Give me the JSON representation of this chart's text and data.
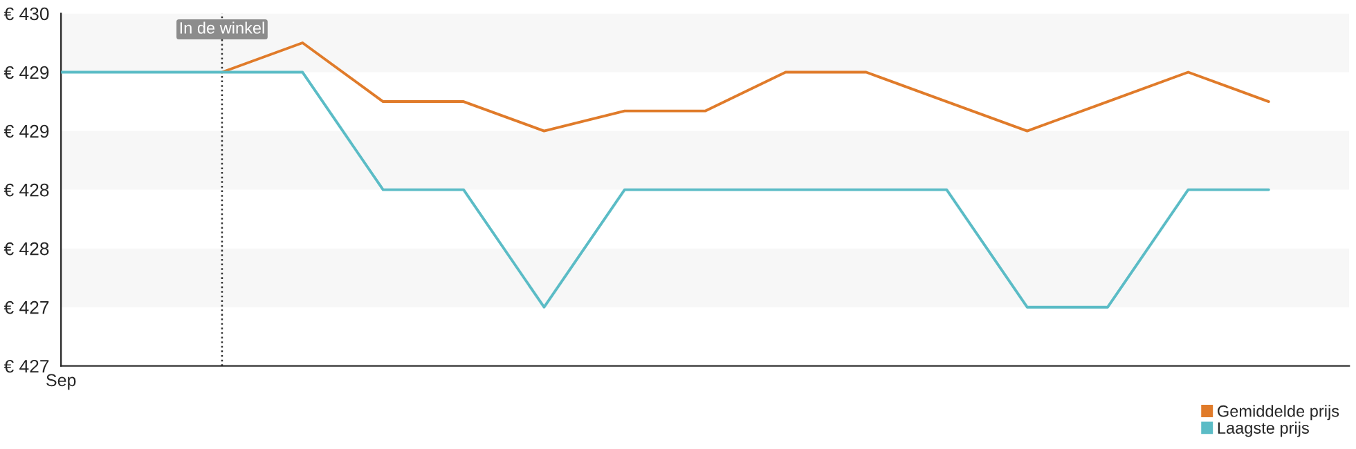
{
  "chart_data": {
    "type": "line",
    "categories": [
      "Sep",
      null,
      null,
      null,
      null,
      null,
      null,
      null,
      null,
      null,
      null,
      null,
      null,
      null,
      null,
      null
    ],
    "series": [
      {
        "name": "Gemiddelde prijs",
        "color": "#e07b2a",
        "values": [
          null,
          null,
          429.5,
          429.75,
          429.25,
          429.25,
          429,
          429.17,
          429.17,
          429.5,
          429.5,
          429.25,
          429,
          429.25,
          429.5,
          429.25
        ]
      },
      {
        "name": "Laagste prijs",
        "color": "#5bbcc6",
        "values": [
          429.5,
          429.5,
          429.5,
          429.5,
          428.5,
          428.5,
          427.5,
          428.5,
          428.5,
          428.5,
          428.5,
          428.5,
          427.5,
          427.5,
          428.5,
          428.5
        ]
      }
    ],
    "ylim": [
      427,
      430
    ],
    "yticks": [
      {
        "value": 427,
        "label": "€ 427"
      },
      {
        "value": 427.5,
        "label": "€ 427"
      },
      {
        "value": 428,
        "label": "€ 428"
      },
      {
        "value": 428.5,
        "label": "€ 428"
      },
      {
        "value": 429,
        "label": "€ 429"
      },
      {
        "value": 429.5,
        "label": "€ 429"
      },
      {
        "value": 430,
        "label": "€ 430"
      }
    ],
    "bands": [
      {
        "axis": "y",
        "from": 429.5,
        "to": 430,
        "color": "#f7f7f7"
      },
      {
        "axis": "y",
        "from": 428.5,
        "to": 429,
        "color": "#f7f7f7"
      },
      {
        "axis": "y",
        "from": 427.5,
        "to": 428,
        "color": "#f7f7f7"
      }
    ],
    "annotations": [
      "In de winkel"
    ],
    "grid": false,
    "legend": "bottom right"
  }
}
